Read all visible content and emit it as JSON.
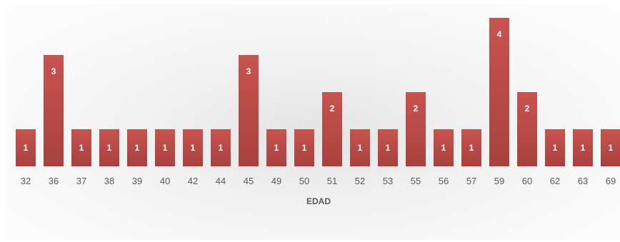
{
  "chart_data": {
    "type": "bar",
    "categories": [
      "32",
      "36",
      "37",
      "38",
      "39",
      "40",
      "42",
      "44",
      "45",
      "49",
      "50",
      "51",
      "52",
      "53",
      "55",
      "56",
      "57",
      "59",
      "60",
      "62",
      "63",
      "69"
    ],
    "values": [
      1,
      3,
      1,
      1,
      1,
      1,
      1,
      1,
      3,
      1,
      1,
      2,
      1,
      1,
      2,
      1,
      1,
      4,
      2,
      1,
      1,
      1
    ],
    "data_labels": [
      "1",
      "3",
      "1",
      "1",
      "1",
      "1",
      "1",
      "1",
      "3",
      "1",
      "1",
      "2",
      "1",
      "1",
      "2",
      "1",
      "1",
      "4",
      "2",
      "1",
      "1",
      "1"
    ],
    "xlabel": "EDAD",
    "ylabel": "",
    "ylim": [
      0,
      4
    ],
    "grid": false,
    "legend": "none",
    "colors": {
      "bar": "#c0504d",
      "bar_dark": "#a8413e",
      "label": "#ffffff",
      "tick": "#595959"
    }
  }
}
